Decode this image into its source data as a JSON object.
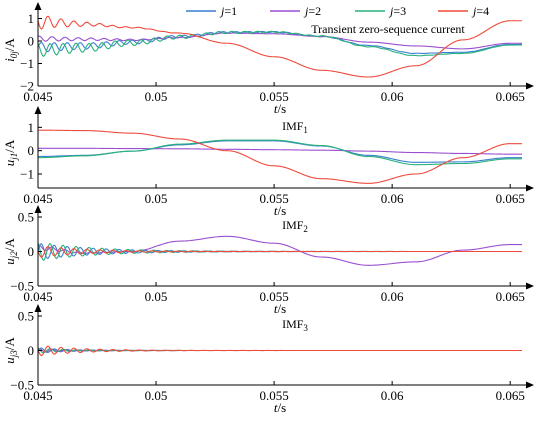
{
  "legend": {
    "prefix": "j",
    "entries": [
      {
        "label": "=1",
        "color": "#3a7fd0"
      },
      {
        "label": "=2",
        "color": "#9b4fd0"
      },
      {
        "label": "=3",
        "color": "#27b27a"
      },
      {
        "label": "=4",
        "color": "#ee4b3c"
      }
    ]
  },
  "chart_data": [
    {
      "type": "line",
      "title": "Transient zero-sequence current",
      "ylabel_main": "i",
      "ylabel_sub": "0j",
      "ylabel_unit": "/A",
      "xlabel_main": "t",
      "xlabel_unit": "/s",
      "xlim": [
        0.045,
        0.0655
      ],
      "ylim": [
        -2,
        1.2
      ],
      "xticks": [
        0.045,
        0.05,
        0.055,
        0.06,
        0.065
      ],
      "xtick_labels": [
        "0.045",
        "0.05",
        "0.055",
        "0.06",
        "0.065"
      ],
      "yticks": [
        1,
        0,
        -1,
        -2
      ],
      "ytick_labels": [
        "1",
        "0",
        "−1",
        "−2"
      ],
      "series": [
        {
          "name": "j=1",
          "x": [
            0.045,
            0.047,
            0.049,
            0.051,
            0.053,
            0.055,
            0.057,
            0.059,
            0.061,
            0.063,
            0.065
          ],
          "y": [
            -0.28,
            -0.22,
            -0.05,
            0.2,
            0.38,
            0.4,
            0.2,
            -0.2,
            -0.55,
            -0.5,
            -0.15
          ],
          "osc": [
            0.22,
            0.0045
          ],
          "color": "#3a7fd0"
        },
        {
          "name": "j=2",
          "x": [
            0.045,
            0.047,
            0.049,
            0.051,
            0.053,
            0.055,
            0.057,
            0.059,
            0.061,
            0.063,
            0.065
          ],
          "y": [
            0.1,
            0.08,
            0.05,
            0.15,
            0.35,
            0.32,
            0.2,
            -0.05,
            -0.22,
            -0.35,
            -0.1
          ],
          "osc": [
            0.12,
            0.003
          ],
          "color": "#9b4fd0"
        },
        {
          "name": "j=3",
          "x": [
            0.045,
            0.047,
            0.049,
            0.051,
            0.053,
            0.055,
            0.057,
            0.059,
            0.061,
            0.063,
            0.065
          ],
          "y": [
            -0.4,
            -0.3,
            -0.08,
            0.18,
            0.38,
            0.4,
            0.22,
            -0.25,
            -0.65,
            -0.55,
            -0.18
          ],
          "osc": [
            0.3,
            0.0045
          ],
          "color": "#27b27a"
        },
        {
          "name": "j=4",
          "x": [
            0.045,
            0.047,
            0.049,
            0.051,
            0.053,
            0.055,
            0.057,
            0.059,
            0.061,
            0.063,
            0.065
          ],
          "y": [
            0.85,
            0.75,
            0.6,
            0.35,
            -0.1,
            -0.7,
            -1.3,
            -1.6,
            -1.1,
            0.05,
            0.9
          ],
          "osc": [
            0.35,
            0.0015
          ],
          "color": "#ee4b3c"
        }
      ]
    },
    {
      "type": "line",
      "annotation_main": "IMF",
      "annotation_sub": "1",
      "ylabel_main": "u",
      "ylabel_sub": "j1",
      "ylabel_unit": "/A",
      "xlabel_main": "t",
      "xlabel_unit": "/s",
      "xlim": [
        0.045,
        0.0655
      ],
      "ylim": [
        -1.6,
        1.4
      ],
      "xticks": [
        0.045,
        0.05,
        0.055,
        0.06,
        0.065
      ],
      "xtick_labels": [
        "0.045",
        "0.05",
        "0.055",
        "0.06",
        "0.065"
      ],
      "yticks": [
        1,
        0,
        -1
      ],
      "ytick_labels": [
        "1",
        "0",
        "−1"
      ],
      "series": [
        {
          "name": "j=1",
          "x": [
            0.045,
            0.047,
            0.049,
            0.051,
            0.053,
            0.055,
            0.057,
            0.059,
            0.061,
            0.063,
            0.065
          ],
          "y": [
            -0.25,
            -0.2,
            -0.02,
            0.25,
            0.42,
            0.42,
            0.2,
            -0.2,
            -0.5,
            -0.48,
            -0.3
          ],
          "color": "#3a7fd0"
        },
        {
          "name": "j=2",
          "x": [
            0.045,
            0.047,
            0.049,
            0.051,
            0.053,
            0.055,
            0.057,
            0.059,
            0.061,
            0.063,
            0.065
          ],
          "y": [
            0.1,
            0.1,
            0.09,
            0.08,
            0.06,
            0.04,
            0.02,
            -0.02,
            -0.08,
            -0.12,
            -0.15
          ],
          "color": "#9b4fd0"
        },
        {
          "name": "j=3",
          "x": [
            0.045,
            0.047,
            0.049,
            0.051,
            0.053,
            0.055,
            0.057,
            0.059,
            0.061,
            0.063,
            0.065
          ],
          "y": [
            -0.3,
            -0.22,
            -0.02,
            0.28,
            0.45,
            0.45,
            0.22,
            -0.25,
            -0.6,
            -0.55,
            -0.35
          ],
          "color": "#27b27a"
        },
        {
          "name": "j=4",
          "x": [
            0.045,
            0.047,
            0.049,
            0.051,
            0.053,
            0.055,
            0.057,
            0.059,
            0.061,
            0.063,
            0.065
          ],
          "y": [
            0.88,
            0.86,
            0.75,
            0.5,
            0.0,
            -0.65,
            -1.2,
            -1.4,
            -1.0,
            -0.3,
            0.3
          ],
          "color": "#ee4b3c"
        }
      ]
    },
    {
      "type": "line",
      "annotation_main": "IMF",
      "annotation_sub": "2",
      "ylabel_main": "u",
      "ylabel_sub": "j2",
      "ylabel_unit": "/A",
      "xlabel_main": "t",
      "xlabel_unit": "/s",
      "xlim": [
        0.045,
        0.0655
      ],
      "ylim": [
        -0.5,
        0.5
      ],
      "xticks": [
        0.045,
        0.05,
        0.055,
        0.06,
        0.065
      ],
      "xtick_labels": [
        "0.045",
        "0.05",
        "0.055",
        "0.06",
        "0.065"
      ],
      "yticks": [
        0.5,
        0,
        -0.5
      ],
      "ytick_labels": [
        "0.5",
        "0",
        "−0.5"
      ],
      "series": [
        {
          "name": "j=1",
          "x": [
            0.045,
            0.0655
          ],
          "y": [
            0,
            0
          ],
          "osc": [
            0.12,
            0.0025
          ],
          "color": "#3a7fd0"
        },
        {
          "name": "j=2",
          "x": [
            0.045,
            0.047,
            0.049,
            0.051,
            0.053,
            0.055,
            0.057,
            0.059,
            0.061,
            0.063,
            0.065
          ],
          "y": [
            0.05,
            -0.02,
            0.0,
            0.15,
            0.22,
            0.12,
            -0.08,
            -0.2,
            -0.15,
            0.02,
            0.1
          ],
          "osc": [
            0.04,
            0.0015
          ],
          "color": "#9b4fd0"
        },
        {
          "name": "j=3",
          "x": [
            0.045,
            0.0655
          ],
          "y": [
            0,
            0
          ],
          "osc": [
            0.14,
            0.0025
          ],
          "color": "#27b27a"
        },
        {
          "name": "j=4",
          "x": [
            0.045,
            0.0655
          ],
          "y": [
            0,
            0
          ],
          "osc": [
            0.09,
            0.002
          ],
          "color": "#ee4b3c"
        }
      ]
    },
    {
      "type": "line",
      "annotation_main": "IMF",
      "annotation_sub": "3",
      "ylabel_main": "u",
      "ylabel_sub": "j3",
      "ylabel_unit": "/A",
      "xlabel_main": "t",
      "xlabel_unit": "/s",
      "xlim": [
        0.045,
        0.0655
      ],
      "ylim": [
        -0.5,
        0.5
      ],
      "xticks": [
        0.045,
        0.05,
        0.055,
        0.06,
        0.065
      ],
      "xtick_labels": [
        "0.045",
        "0.05",
        "0.055",
        "0.06",
        "0.065"
      ],
      "yticks": [
        0.5,
        0,
        -0.5
      ],
      "ytick_labels": [
        "0.5",
        "0",
        "−0.5"
      ],
      "series": [
        {
          "name": "j=1",
          "x": [
            0.045,
            0.0655
          ],
          "y": [
            0,
            0
          ],
          "osc": [
            0.04,
            0.0012
          ],
          "color": "#3a7fd0"
        },
        {
          "name": "j=2",
          "x": [
            0.045,
            0.0655
          ],
          "y": [
            0,
            0
          ],
          "osc": [
            0.03,
            0.0012
          ],
          "color": "#9b4fd0"
        },
        {
          "name": "j=3",
          "x": [
            0.045,
            0.0655
          ],
          "y": [
            0,
            0
          ],
          "osc": [
            0.04,
            0.0012
          ],
          "color": "#27b27a"
        },
        {
          "name": "j=4",
          "x": [
            0.045,
            0.0655
          ],
          "y": [
            0,
            0
          ],
          "osc": [
            0.08,
            0.0018
          ],
          "color": "#ee4b3c"
        }
      ]
    }
  ]
}
